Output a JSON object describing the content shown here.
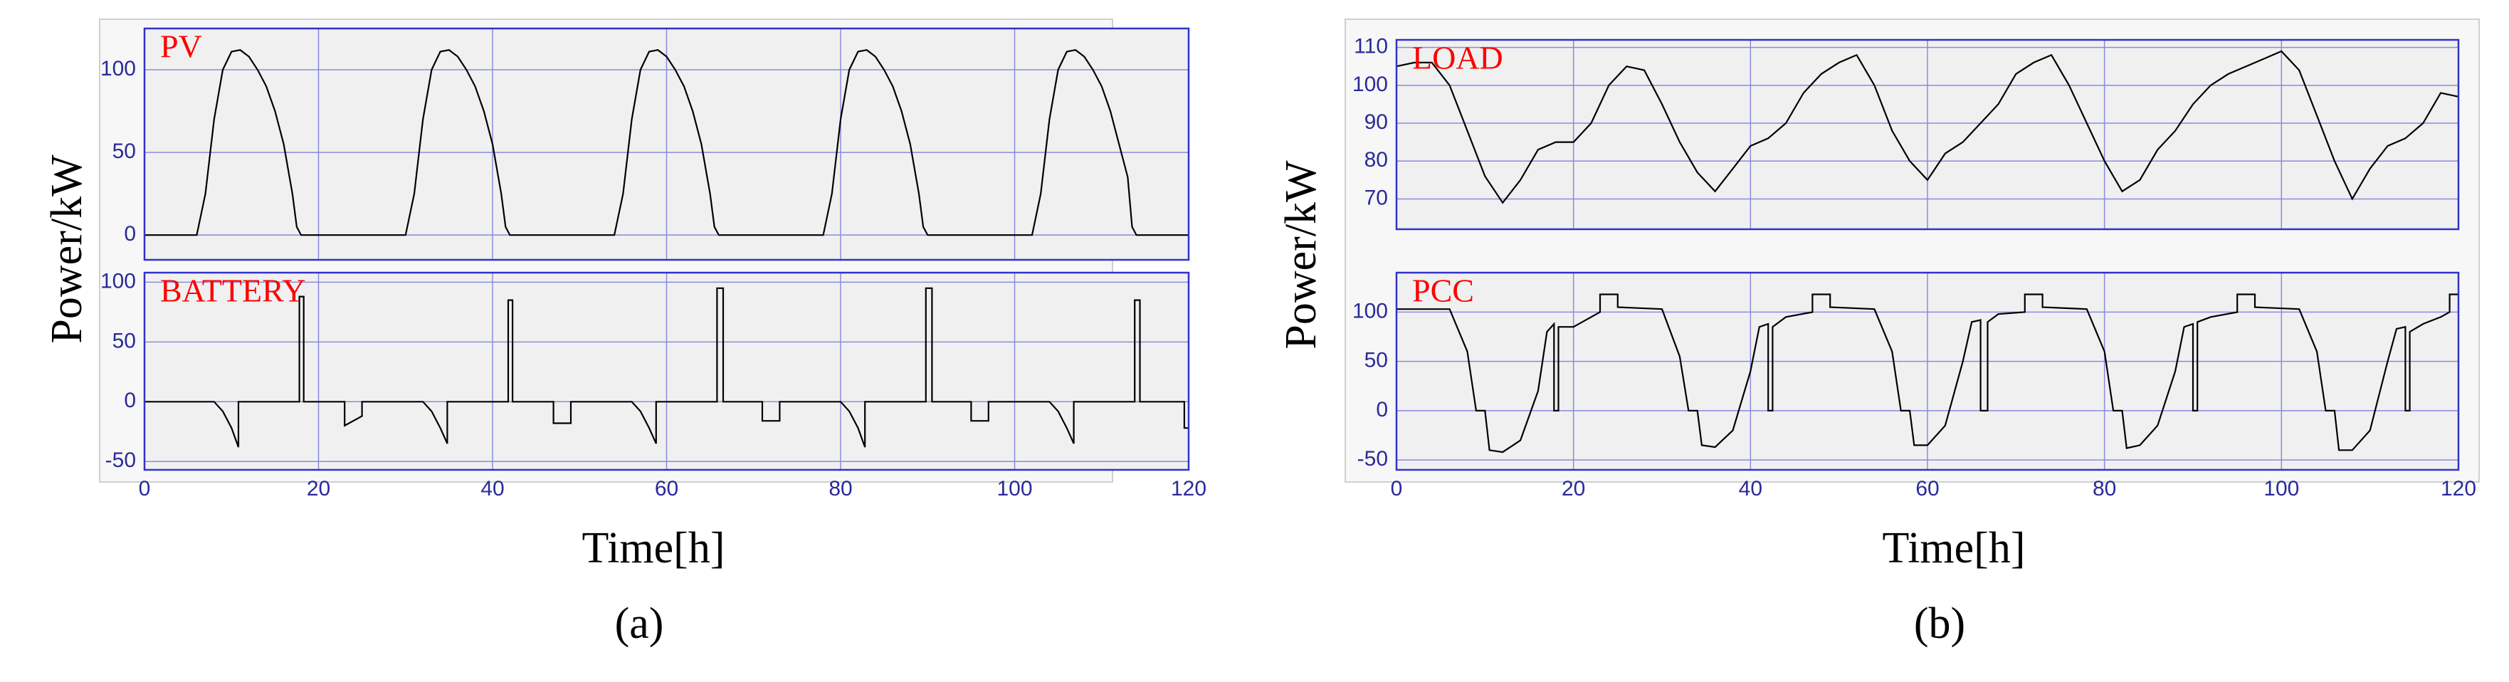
{
  "chart_data": [
    {
      "type": "line",
      "caption": "(a)",
      "xlabel": "Time[h]",
      "ylabel": "Power/kW",
      "xlim": [
        0,
        120
      ],
      "xticks": [
        0,
        20,
        40,
        60,
        80,
        100,
        120
      ],
      "grid": true,
      "panels": [
        {
          "ylim": [
            -15,
            125
          ],
          "yticks": [
            0,
            50,
            100
          ],
          "series": [
            {
              "name": "PV",
              "color": "#000000",
              "label_color": "#ff0000",
              "x": [
                0,
                6,
                7,
                8,
                9,
                10,
                11,
                12,
                13,
                14,
                15,
                16,
                17,
                17.5,
                18,
                30,
                31,
                32,
                33,
                34,
                35,
                36,
                37,
                38,
                39,
                40,
                41,
                41.5,
                42,
                54,
                55,
                56,
                57,
                58,
                59,
                60,
                61,
                62,
                63,
                64,
                65,
                65.5,
                66,
                78,
                79,
                80,
                81,
                82,
                83,
                84,
                85,
                86,
                87,
                88,
                89,
                89.5,
                90,
                102,
                103,
                104,
                105,
                106,
                107,
                108,
                109,
                110,
                111,
                112,
                113,
                113.5,
                114,
                120
              ],
              "values": [
                0,
                0,
                25,
                70,
                100,
                111,
                112,
                108,
                100,
                90,
                75,
                55,
                25,
                5,
                0,
                0,
                25,
                70,
                100,
                111,
                112,
                108,
                100,
                90,
                75,
                55,
                25,
                5,
                0,
                0,
                25,
                70,
                100,
                111,
                112,
                108,
                100,
                90,
                75,
                55,
                25,
                5,
                0,
                0,
                25,
                70,
                100,
                111,
                112,
                108,
                100,
                90,
                75,
                55,
                25,
                5,
                0,
                0,
                25,
                70,
                100,
                111,
                112,
                108,
                100,
                90,
                75,
                55,
                35,
                5,
                0,
                0
              ]
            }
          ]
        },
        {
          "ylim": [
            -57,
            108
          ],
          "yticks": [
            -50,
            0,
            50,
            100
          ],
          "series": [
            {
              "name": "BATTERY",
              "color": "#000000",
              "label_color": "#ff0000",
              "x": [
                0,
                8,
                9,
                10,
                10.8,
                10.8,
                17.8,
                17.8,
                18.3,
                18.3,
                23,
                23,
                25,
                25,
                32,
                33,
                34,
                34.8,
                34.8,
                41.8,
                41.8,
                42.3,
                42.3,
                47,
                47,
                49,
                49,
                56,
                57,
                58,
                58.8,
                58.8,
                65.8,
                65.8,
                66.5,
                66.5,
                71,
                71,
                73,
                73,
                80,
                81,
                82,
                82.8,
                82.8,
                89.8,
                89.8,
                90.5,
                90.5,
                95,
                95,
                97,
                97,
                104,
                105,
                106,
                106.8,
                106.8,
                113.8,
                113.8,
                114.4,
                114.4,
                119.5,
                119.5,
                120
              ],
              "values": [
                0,
                0,
                -8,
                -22,
                -38,
                0,
                0,
                88,
                88,
                0,
                0,
                -20,
                -12,
                0,
                0,
                -8,
                -22,
                -35,
                0,
                0,
                85,
                85,
                0,
                0,
                -18,
                -18,
                0,
                0,
                -8,
                -22,
                -35,
                0,
                0,
                95,
                95,
                0,
                0,
                -16,
                -16,
                0,
                0,
                -8,
                -22,
                -38,
                0,
                0,
                95,
                95,
                0,
                0,
                -16,
                -16,
                0,
                0,
                -8,
                -22,
                -35,
                0,
                0,
                85,
                85,
                0,
                0,
                -22,
                -22
              ]
            }
          ]
        }
      ]
    },
    {
      "type": "line",
      "caption": "(b)",
      "xlabel": "Time[h]",
      "ylabel": "Power/kW",
      "xlim": [
        0,
        120
      ],
      "xticks": [
        0,
        20,
        40,
        60,
        80,
        100,
        120
      ],
      "grid": true,
      "panels": [
        {
          "ylim": [
            62,
            112
          ],
          "yticks": [
            70,
            80,
            90,
            100,
            110
          ],
          "series": [
            {
              "name": "LOAD",
              "color": "#000000",
              "label_color": "#ff0000",
              "x": [
                0,
                2,
                4,
                6,
                8,
                10,
                12,
                14,
                16,
                18,
                20,
                22,
                24,
                26,
                28,
                30,
                32,
                34,
                36,
                38,
                40,
                42,
                44,
                46,
                48,
                50,
                52,
                54,
                56,
                58,
                60,
                62,
                64,
                66,
                68,
                70,
                72,
                74,
                76,
                78,
                80,
                82,
                84,
                86,
                88,
                90,
                92,
                94,
                96,
                98,
                100,
                102,
                104,
                106,
                108,
                110,
                112,
                114,
                116,
                118,
                120
              ],
              "values": [
                105,
                106,
                106,
                100,
                88,
                76,
                69,
                75,
                83,
                85,
                85,
                90,
                100,
                105,
                104,
                95,
                85,
                77,
                72,
                78,
                84,
                86,
                90,
                98,
                103,
                106,
                108,
                100,
                88,
                80,
                75,
                82,
                85,
                90,
                95,
                103,
                106,
                108,
                100,
                90,
                80,
                72,
                75,
                83,
                88,
                95,
                100,
                103,
                105,
                107,
                109,
                104,
                92,
                80,
                70,
                78,
                84,
                86,
                90,
                98,
                97
              ]
            }
          ]
        },
        {
          "ylim": [
            -60,
            140
          ],
          "yticks": [
            -50,
            0,
            50,
            100
          ],
          "series": [
            {
              "name": "PCC",
              "color": "#000000",
              "label_color": "#ff0000",
              "x": [
                0,
                6,
                8,
                9,
                10,
                10.5,
                12,
                14,
                16,
                17,
                17.8,
                17.8,
                18.3,
                18.3,
                20,
                22,
                23,
                23,
                25,
                25,
                30,
                32,
                33,
                34,
                34.5,
                36,
                38,
                40,
                41,
                42,
                42,
                42.5,
                42.5,
                44,
                47,
                47,
                49,
                49,
                54,
                56,
                57,
                58,
                58.5,
                60,
                62,
                64,
                65,
                66,
                66,
                66.8,
                66.8,
                68,
                71,
                71,
                73,
                73,
                78,
                80,
                81,
                82,
                82.5,
                84,
                86,
                88,
                89,
                90,
                90,
                90.5,
                90.5,
                92,
                95,
                95,
                97,
                97,
                102,
                104,
                105,
                106,
                106.5,
                108,
                110,
                112,
                113,
                114,
                114,
                114.5,
                114.5,
                116,
                118,
                119,
                119,
                120
              ],
              "values": [
                103,
                103,
                60,
                0,
                0,
                -40,
                -42,
                -30,
                20,
                80,
                88,
                0,
                0,
                85,
                85,
                95,
                100,
                118,
                118,
                105,
                103,
                55,
                0,
                0,
                -35,
                -37,
                -20,
                40,
                85,
                88,
                0,
                0,
                85,
                95,
                100,
                118,
                118,
                105,
                103,
                60,
                0,
                0,
                -35,
                -35,
                -15,
                50,
                90,
                92,
                0,
                0,
                90,
                98,
                100,
                118,
                118,
                105,
                103,
                60,
                0,
                0,
                -38,
                -35,
                -15,
                40,
                85,
                88,
                0,
                0,
                90,
                95,
                100,
                118,
                118,
                105,
                103,
                60,
                0,
                0,
                -40,
                -40,
                -20,
                50,
                83,
                85,
                0,
                0,
                80,
                88,
                95,
                100,
                118,
                118
              ]
            }
          ]
        }
      ]
    }
  ]
}
